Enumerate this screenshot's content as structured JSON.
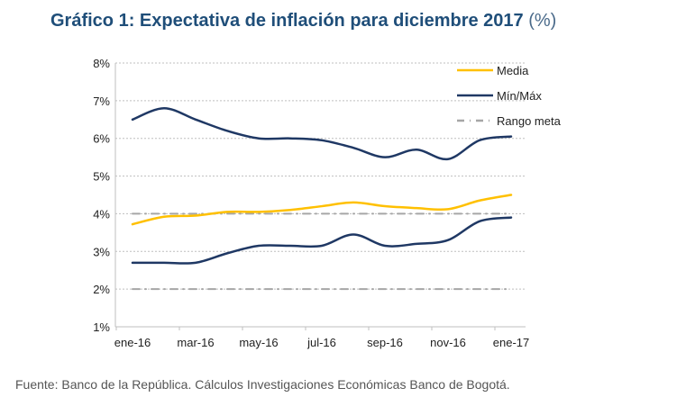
{
  "chart_data": {
    "type": "line",
    "title": "Gráfico 1: Expectativa de inflación para diciembre 2017",
    "title_unit": "(%)",
    "x": [
      "ene-16",
      "feb-16",
      "mar-16",
      "abr-16",
      "may-16",
      "jun-16",
      "jul-16",
      "ago-16",
      "sep-16",
      "oct-16",
      "nov-16",
      "dic-16",
      "ene-17"
    ],
    "x_tick_labels": [
      "ene-16",
      "mar-16",
      "may-16",
      "jul-16",
      "sep-16",
      "nov-16",
      "ene-17"
    ],
    "y_tick_labels": [
      "1%",
      "2%",
      "3%",
      "4%",
      "5%",
      "6%",
      "7%",
      "8%"
    ],
    "ylim": [
      1,
      8
    ],
    "ylabel": "",
    "xlabel": "",
    "grid": true,
    "legend_position": "top-right",
    "series": [
      {
        "name": "Media",
        "color": "#FFC000",
        "style": "solid",
        "values": [
          3.72,
          3.92,
          3.95,
          4.05,
          4.05,
          4.1,
          4.2,
          4.3,
          4.2,
          4.15,
          4.12,
          4.35,
          4.5
        ]
      },
      {
        "name": "Mín/Máx",
        "color": "#1F3864",
        "style": "solid",
        "part": "max",
        "values": [
          6.5,
          6.8,
          6.5,
          6.2,
          6.0,
          6.0,
          5.95,
          5.75,
          5.5,
          5.7,
          5.45,
          5.95,
          6.05
        ]
      },
      {
        "name": "Mín/Máx",
        "color": "#1F3864",
        "style": "solid",
        "part": "min",
        "values": [
          2.7,
          2.7,
          2.7,
          2.95,
          3.15,
          3.15,
          3.15,
          3.45,
          3.15,
          3.2,
          3.3,
          3.8,
          3.9
        ]
      },
      {
        "name": "Rango meta",
        "color": "#A6A6A6",
        "style": "dash-dot",
        "part": "upper",
        "values": [
          4,
          4,
          4,
          4,
          4,
          4,
          4,
          4,
          4,
          4,
          4,
          4,
          4
        ]
      },
      {
        "name": "Rango meta",
        "color": "#A6A6A6",
        "style": "dash-dot",
        "part": "lower",
        "values": [
          2,
          2,
          2,
          2,
          2,
          2,
          2,
          2,
          2,
          2,
          2,
          2,
          2
        ]
      }
    ],
    "legend": [
      "Media",
      "Mín/Máx",
      "Rango meta"
    ]
  },
  "source": "Fuente: Banco de la República. Cálculos Investigaciones Económicas Banco de Bogotá."
}
